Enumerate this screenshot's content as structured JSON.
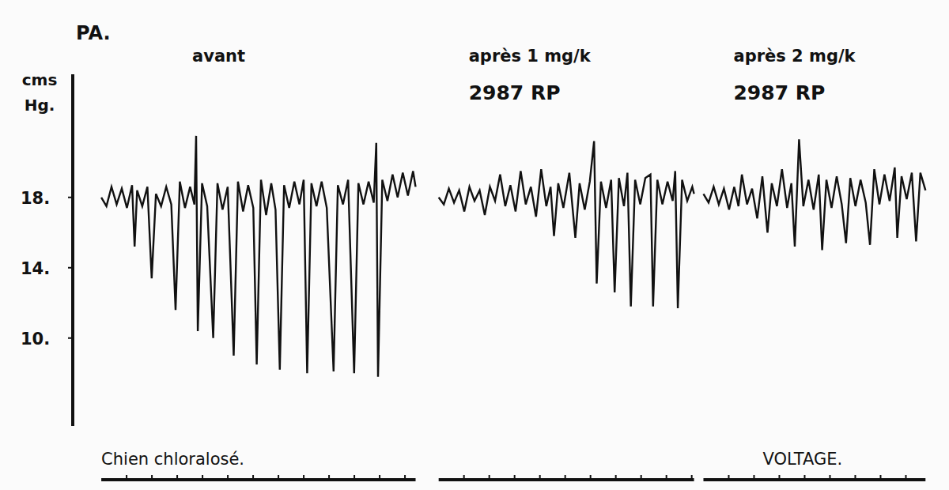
{
  "chart_data": {
    "type": "line",
    "title": "PA.",
    "ylabel": "cms Hg.",
    "ylim": [
      5,
      25
    ],
    "xlim": [
      0,
      100
    ],
    "yticks": [
      {
        "value": 10,
        "label": "10."
      },
      {
        "value": 14,
        "label": "14."
      },
      {
        "value": 18,
        "label": "18."
      }
    ],
    "grid": false,
    "tick_labels": "y",
    "color": "#111111",
    "annotations": [
      "Chien chloralosé.",
      "VOLTAGE."
    ],
    "series": [
      {
        "name": "avant",
        "color": "#111111",
        "x": [
          2.6,
          3.2,
          3.8,
          4.4,
          5.0,
          5.6,
          6.2,
          6.5,
          6.8,
          7.4,
          8.0,
          8.5,
          9.0,
          9.6,
          10.2,
          10.8,
          11.3,
          11.8,
          12.4,
          13.0,
          13.5,
          13.7,
          13.9,
          14.4,
          15.0,
          15.7,
          16.2,
          16.8,
          17.4,
          18.1,
          18.6,
          19.2,
          19.8,
          20.4,
          20.8,
          21.3,
          21.9,
          22.5,
          23.0,
          23.5,
          24.0,
          24.6,
          25.2,
          25.8,
          26.3,
          26.7,
          27.2,
          27.8,
          28.4,
          29.0,
          29.8,
          30.3,
          30.9,
          31.5,
          32.2,
          32.7,
          33.3,
          33.9,
          34.5,
          34.8,
          35.0,
          35.5,
          36.1,
          36.7,
          37.3,
          37.9,
          38.5,
          39.1,
          39.4
        ],
        "values": [
          18.0,
          17.5,
          18.6,
          17.6,
          18.5,
          17.4,
          18.7,
          15.2,
          18.4,
          17.5,
          18.6,
          13.4,
          18.2,
          17.5,
          18.6,
          17.6,
          11.6,
          18.9,
          17.4,
          18.6,
          17.6,
          21.5,
          10.4,
          18.8,
          17.5,
          10.0,
          18.8,
          17.3,
          18.6,
          9.0,
          18.9,
          17.2,
          18.7,
          17.4,
          8.5,
          19.0,
          17.0,
          18.8,
          17.3,
          8.2,
          18.7,
          17.4,
          18.9,
          17.6,
          19.0,
          8.0,
          18.8,
          17.5,
          18.9,
          17.4,
          8.1,
          18.7,
          17.6,
          19.0,
          8.0,
          18.8,
          17.6,
          18.9,
          17.7,
          21.1,
          7.8,
          19.0,
          17.8,
          19.3,
          18.0,
          19.4,
          18.1,
          19.5,
          18.6
        ]
      },
      {
        "name": "après 1 mg/k",
        "label": "2987 RP",
        "color": "#111111",
        "x": [
          42.1,
          42.7,
          43.3,
          43.9,
          44.5,
          45.1,
          45.7,
          46.3,
          46.9,
          47.5,
          48.1,
          48.7,
          49.3,
          49.9,
          50.5,
          51.1,
          51.7,
          52.3,
          52.9,
          53.5,
          54.1,
          54.7,
          55.2,
          55.6,
          56.1,
          56.7,
          57.4,
          58.1,
          58.6,
          59.2,
          59.8,
          60.3,
          60.6,
          61.1,
          61.7,
          62.3,
          62.7,
          63.2,
          63.8,
          64.2,
          64.6,
          65.1,
          65.7,
          66.3,
          66.9,
          67.2,
          67.7,
          68.3,
          68.9,
          69.5,
          69.8,
          70.1,
          70.6,
          71.2,
          71.8,
          72.0
        ],
        "values": [
          18.0,
          17.6,
          18.5,
          17.7,
          18.4,
          17.2,
          18.6,
          17.8,
          18.4,
          17.0,
          18.6,
          17.8,
          19.3,
          17.5,
          18.7,
          17.2,
          19.5,
          17.6,
          18.6,
          16.9,
          19.6,
          17.5,
          18.6,
          15.8,
          18.8,
          17.4,
          19.4,
          15.7,
          18.8,
          17.3,
          18.9,
          21.2,
          13.1,
          18.9,
          17.4,
          19.0,
          12.6,
          19.1,
          17.5,
          19.4,
          11.8,
          19.0,
          17.6,
          19.1,
          19.3,
          11.8,
          19.0,
          17.6,
          18.9,
          17.8,
          19.5,
          11.7,
          19.0,
          17.8,
          18.6,
          18.2
        ]
      },
      {
        "name": "après 2 mg/k",
        "label": "2987 RP",
        "color": "#111111",
        "x": [
          73.1,
          73.7,
          74.3,
          74.9,
          75.5,
          76.1,
          76.7,
          77.2,
          77.6,
          78.2,
          78.8,
          79.4,
          80.0,
          80.6,
          81.1,
          81.7,
          82.3,
          82.9,
          83.4,
          83.8,
          84.3,
          84.8,
          85.4,
          86.0,
          86.6,
          87.0,
          87.5,
          88.1,
          88.7,
          89.3,
          89.8,
          90.3,
          90.9,
          91.5,
          92.1,
          92.6,
          93.1,
          93.7,
          94.3,
          94.9,
          95.5,
          95.8,
          96.3,
          96.9,
          97.5,
          98.0,
          98.5,
          99.1
        ],
        "values": [
          18.2,
          17.7,
          18.6,
          17.6,
          18.5,
          17.3,
          18.6,
          17.5,
          19.3,
          17.6,
          18.5,
          16.8,
          19.2,
          16.0,
          18.8,
          17.5,
          19.6,
          17.4,
          18.8,
          15.2,
          21.3,
          17.5,
          19.0,
          17.3,
          19.3,
          15.0,
          19.0,
          17.4,
          19.2,
          17.6,
          15.4,
          19.1,
          17.5,
          19.0,
          17.7,
          15.3,
          19.6,
          17.6,
          19.3,
          17.8,
          19.7,
          15.7,
          19.2,
          17.9,
          19.4,
          15.5,
          19.4,
          18.4
        ]
      }
    ]
  }
}
